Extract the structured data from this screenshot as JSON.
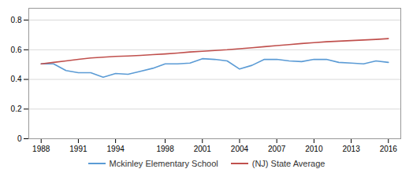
{
  "chart_data": {
    "type": "line",
    "x": [
      1988,
      1989,
      1990,
      1991,
      1992,
      1993,
      1994,
      1995,
      1996,
      1997,
      1998,
      1999,
      2000,
      2001,
      2002,
      2003,
      2004,
      2005,
      2006,
      2007,
      2008,
      2009,
      2010,
      2011,
      2012,
      2013,
      2014,
      2015,
      2016
    ],
    "series": [
      {
        "name": "Mckinley Elementary School",
        "color": "#5b9bd5",
        "values": [
          0.505,
          0.505,
          0.46,
          0.445,
          0.445,
          0.415,
          0.44,
          0.435,
          0.455,
          0.475,
          0.505,
          0.505,
          0.51,
          0.54,
          0.535,
          0.525,
          0.47,
          0.495,
          0.535,
          0.535,
          0.525,
          0.52,
          0.535,
          0.535,
          0.515,
          0.51,
          0.505,
          0.525,
          0.515
        ]
      },
      {
        "name": "(NJ) State Average",
        "color": "#c0504d",
        "values": [
          0.505,
          0.515,
          0.525,
          0.535,
          0.545,
          0.55,
          0.555,
          0.558,
          0.562,
          0.567,
          0.572,
          0.578,
          0.585,
          0.59,
          0.595,
          0.6,
          0.607,
          0.614,
          0.621,
          0.628,
          0.635,
          0.642,
          0.648,
          0.654,
          0.658,
          0.662,
          0.666,
          0.67,
          0.675
        ]
      }
    ],
    "xlim": [
      1987.0,
      2017.0
    ],
    "xticks": [
      1988,
      1991,
      1994,
      1998,
      2001,
      2004,
      2007,
      2010,
      2013,
      2016
    ],
    "ylim": [
      0,
      0.88
    ],
    "yticks": [
      0,
      0.2,
      0.4,
      0.6,
      0.8
    ],
    "grid": true,
    "legend": "bottom"
  }
}
